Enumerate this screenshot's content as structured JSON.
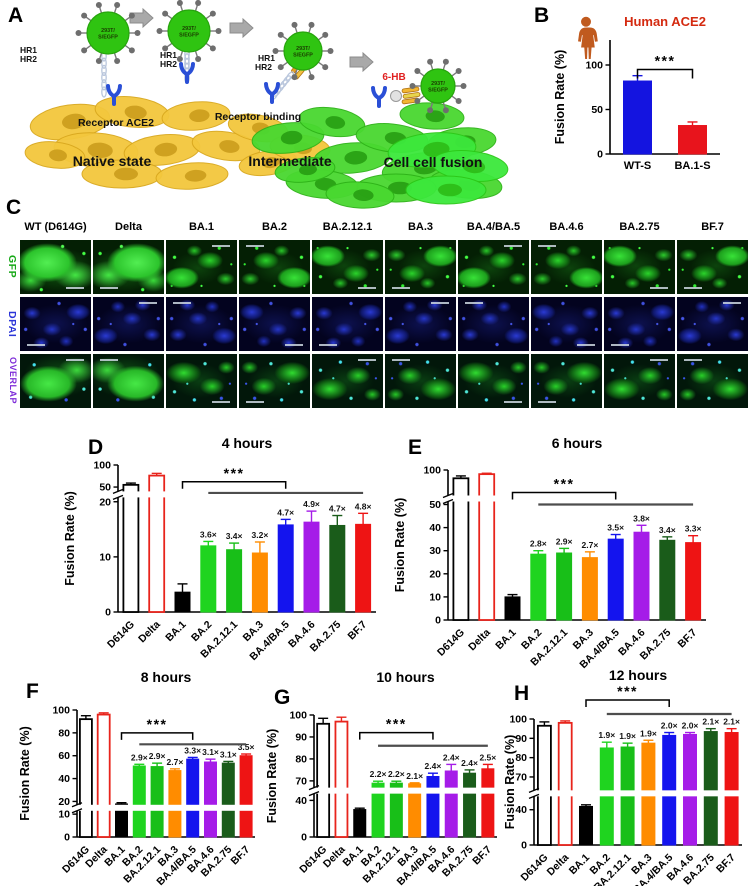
{
  "panels": {
    "A": "A",
    "B": "B",
    "C": "C",
    "D": "D",
    "E": "E",
    "F": "F",
    "G": "G",
    "H": "H"
  },
  "panelA": {
    "virus_label_line1": "293T/",
    "virus_label_line2": "S/EGFP",
    "hr1": "HR1",
    "hr2": "HR2",
    "receptor_label": "Receptor ACE2",
    "receptor_binding_label": "Receptor binding",
    "six_hb_label": "6-HB",
    "six_hb_color": "#e02020",
    "stage1": "Native state",
    "stage2": "Intermediate",
    "stage3": "Cell cell fusion",
    "colors": {
      "cell_yellow": "#f3c73d",
      "cell_green": "#49d830",
      "cell_bright_green": "#3ce83c",
      "virus_green": "#2fc411",
      "spike_gray": "#6e6e6e",
      "receptor_blue": "#2a4fd6",
      "arrow_gray": "#a9a9a9"
    }
  },
  "panelB": {
    "title_color": "#d42a10",
    "human_icon_color": "#c05a1e"
  },
  "panelC": {
    "columns": [
      "WT (D614G)",
      "Delta",
      "BA.1",
      "BA.2",
      "BA.2.12.1",
      "BA.3",
      "BA.4/BA.5",
      "BA.4.6",
      "BA.2.75",
      "BF.7"
    ],
    "rows": [
      {
        "label": "GFP",
        "color": "#17a817"
      },
      {
        "label": "DPAI",
        "color": "#2b35d8"
      },
      {
        "label": "OVERLAP",
        "color": "#7d2bd8"
      }
    ]
  },
  "chart_data": {
    "type": "bar",
    "categories": [
      "D614G",
      "Delta",
      "BA.1",
      "BA.2",
      "BA.2.12.1",
      "BA.3",
      "BA.4/BA.5",
      "BA.4.6",
      "BA.2.75",
      "BF.7"
    ],
    "colors": [
      "o#000000",
      "o#e8241c",
      "#000000",
      "#1fd41f",
      "#18bf18",
      "#ff8c00",
      "#1414ee",
      "#a51ce8",
      "#1a5c1a",
      "#ee1414"
    ],
    "panels": {
      "B": {
        "title": "Human ACE2",
        "ylabel": "Fusion Rate (%)",
        "categories": [
          "WT-S",
          "BA.1-S"
        ],
        "colors": [
          "#1414e0",
          "#e8141c"
        ],
        "values": [
          82,
          32
        ],
        "errors": [
          6,
          4
        ],
        "ticks": [
          0,
          50,
          100
        ],
        "sig": "***"
      },
      "D": {
        "title": "4 hours",
        "ylabel": "Fusion Rate (%)",
        "values": [
          55,
          76,
          3.6,
          12,
          11.3,
          10.7,
          15.8,
          16.3,
          15.7,
          15.9
        ],
        "errors": [
          4,
          5,
          1.5,
          0.8,
          1.2,
          2,
          1,
          2,
          1.8,
          2
        ],
        "folds": [
          "",
          "",
          "",
          "3.6×",
          "3.4×",
          "3.2×",
          "4.7×",
          "4.9×",
          "4.7×",
          "4.8×"
        ],
        "ticks": [
          0,
          10,
          20,
          50,
          100
        ],
        "sig": "***"
      },
      "E": {
        "title": "6 hours",
        "ylabel": "Fusion Rate (%)",
        "values": [
          86,
          93,
          10,
          28.5,
          29,
          27,
          35,
          38,
          34.5,
          33.5
        ],
        "errors": [
          4,
          1.5,
          1,
          1.5,
          2,
          2.5,
          2,
          3,
          1.5,
          3
        ],
        "folds": [
          "",
          "",
          "",
          "2.8×",
          "2.9×",
          "2.7×",
          "3.5×",
          "3.8×",
          "3.4×",
          "3.3×"
        ],
        "ticks": [
          0,
          10,
          20,
          30,
          40,
          50,
          100
        ],
        "sig": "***"
      },
      "F": {
        "title": "8 hours",
        "ylabel": "Fusion Rate (%)",
        "values": [
          92,
          96,
          18,
          51,
          50.5,
          47,
          57,
          54.5,
          53.5,
          60
        ],
        "errors": [
          3,
          1.5,
          1,
          1.5,
          3,
          1.5,
          1.5,
          2.5,
          1.5,
          1.5
        ],
        "folds": [
          "",
          "",
          "",
          "2.9×",
          "2.9×",
          "2.7×",
          "3.3×",
          "3.1×",
          "3.1×",
          "3.5×"
        ],
        "ticks": [
          0,
          10,
          20,
          40,
          60,
          80,
          100
        ],
        "sig": "***"
      },
      "G": {
        "title": "10 hours",
        "ylabel": "Fusion Rate (%)",
        "values": [
          96,
          97,
          30,
          66.5,
          66.5,
          65.5,
          72,
          74.5,
          73.5,
          75.5
        ],
        "errors": [
          2.5,
          2,
          1.5,
          3,
          3,
          1.5,
          1.5,
          3,
          1.5,
          2
        ],
        "folds": [
          "",
          "",
          "",
          "2.2×",
          "2.2×",
          "2.1×",
          "2.4×",
          "2.4×",
          "2.4×",
          "2.5×"
        ],
        "ticks": [
          0,
          40,
          70,
          80,
          90,
          100
        ],
        "sig": "***"
      },
      "H": {
        "title": "12 hours",
        "ylabel": "Fusion Rate (%)",
        "values": [
          96.5,
          98,
          43,
          85,
          85.5,
          87.5,
          91.5,
          92,
          93.5,
          93
        ],
        "errors": [
          2,
          1,
          1.5,
          3,
          2,
          1.5,
          1.5,
          1,
          1.5,
          2
        ],
        "folds": [
          "",
          "",
          "",
          "1.9×",
          "1.9×",
          "1.9×",
          "2.0×",
          "2.0×",
          "2.1×",
          "2.1×"
        ],
        "ticks": [
          0,
          40,
          70,
          80,
          90,
          100
        ],
        "sig": "***"
      }
    }
  }
}
